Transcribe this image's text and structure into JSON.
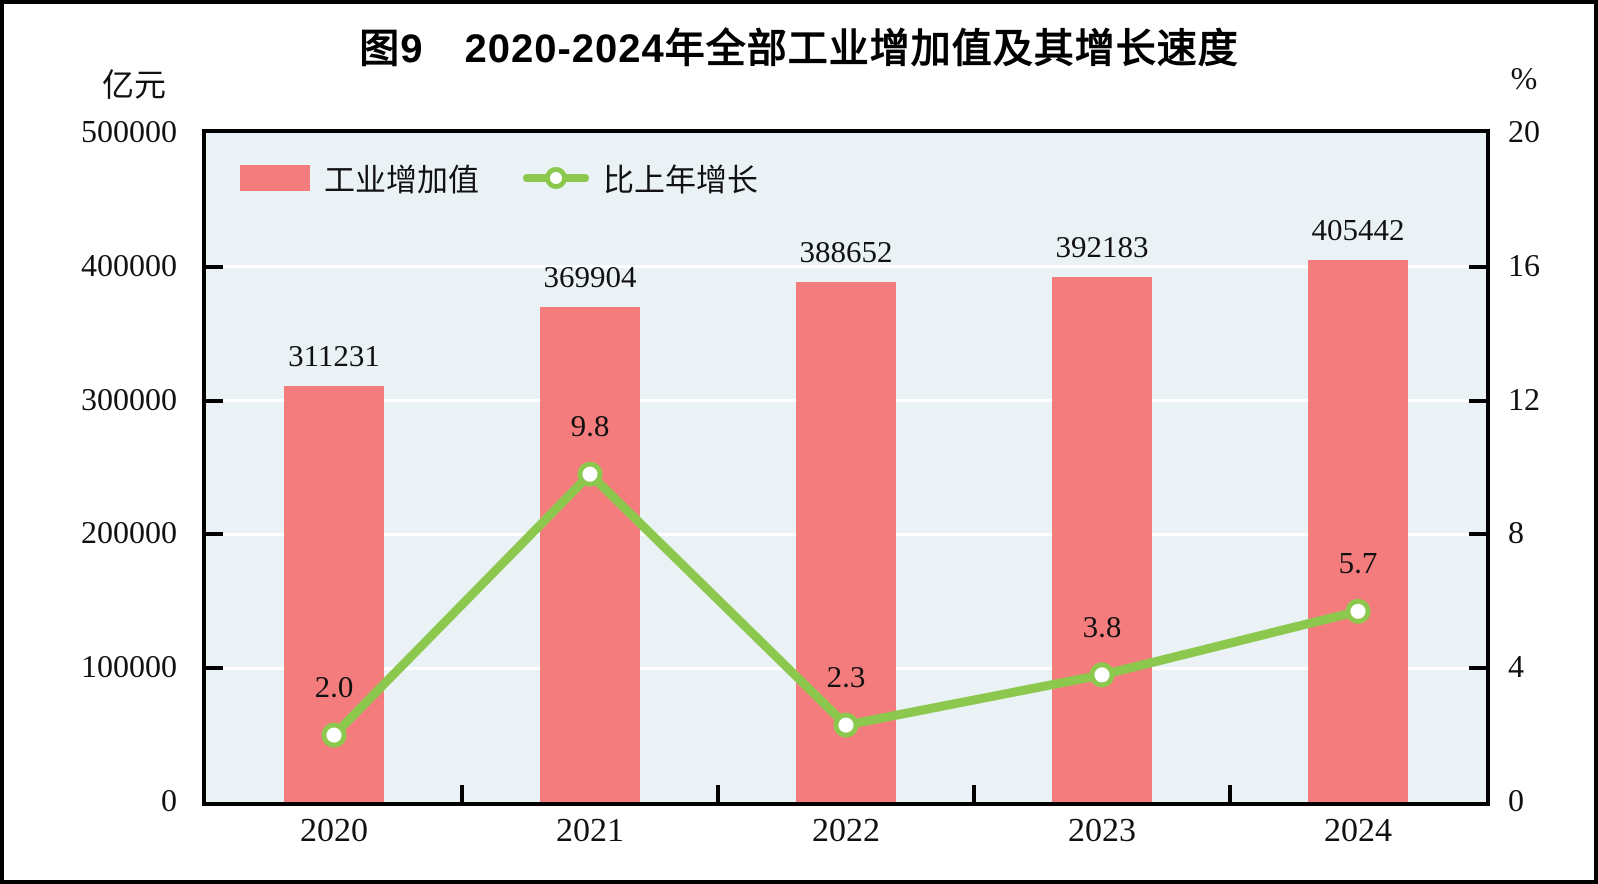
{
  "title": "图9　2020-2024年全部工业增加值及其增长速度",
  "left_axis_unit": "亿元",
  "right_axis_unit": "%",
  "legend": {
    "bar_label": "工业增加值",
    "line_label": "比上年增长"
  },
  "colors": {
    "bar": "#F57C7C",
    "line": "#8CC84E",
    "plot_bg": "#EAF2F6",
    "grid": "#FFFFFF",
    "axis": "#000000",
    "text": "#111111"
  },
  "chart_data": {
    "type": "bar",
    "subtype": "bar+line-dual-axis",
    "title": "图9　2020-2024年全部工业增加值及其增长速度",
    "categories": [
      "2020",
      "2021",
      "2022",
      "2023",
      "2024"
    ],
    "series": [
      {
        "name": "工业增加值",
        "type": "bar",
        "axis": "left",
        "values": [
          311231,
          369904,
          388652,
          392183,
          405442
        ],
        "value_labels": [
          "311231",
          "369904",
          "388652",
          "392183",
          "405442"
        ]
      },
      {
        "name": "比上年增长",
        "type": "line",
        "axis": "right",
        "values": [
          2.0,
          9.8,
          2.3,
          3.8,
          5.7
        ],
        "value_labels": [
          "2.0",
          "9.8",
          "2.3",
          "3.8",
          "5.7"
        ]
      }
    ],
    "left_axis": {
      "label": "亿元",
      "min": 0,
      "max": 500000,
      "step": 100000,
      "tick_labels": [
        "0",
        "100000",
        "200000",
        "300000",
        "400000",
        "500000"
      ]
    },
    "right_axis": {
      "label": "%",
      "min": 0,
      "max": 20,
      "step": 4,
      "tick_labels": [
        "0",
        "4",
        "8",
        "12",
        "16",
        "20"
      ]
    },
    "grid": true,
    "legend_position": "top-left-inside"
  }
}
